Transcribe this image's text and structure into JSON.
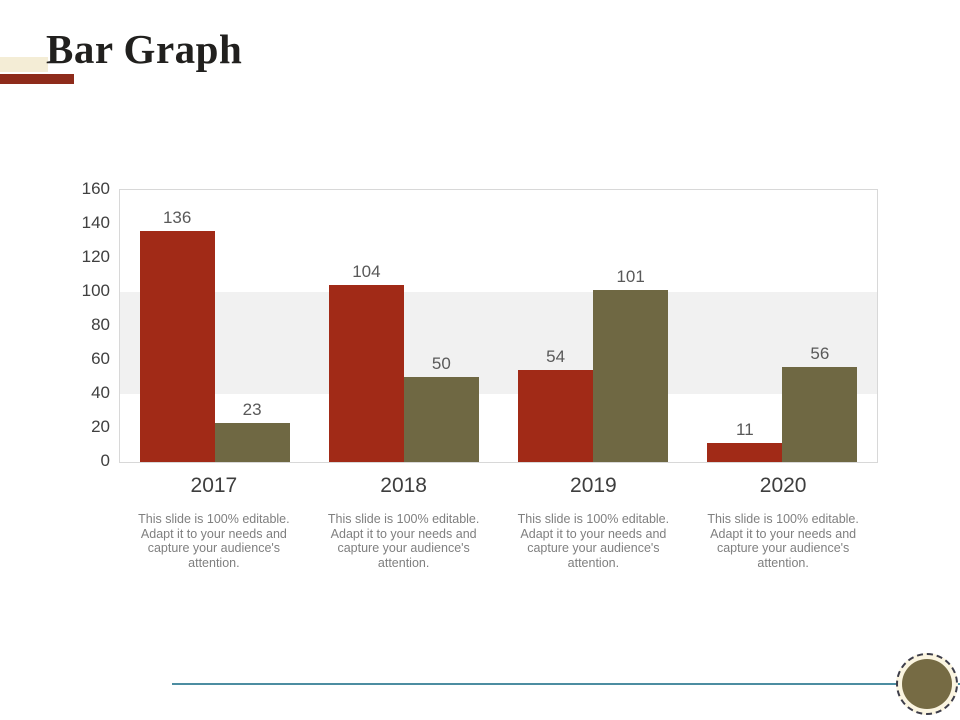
{
  "slide": {
    "title": "Bar Graph"
  },
  "chart_data": {
    "type": "bar",
    "title": "",
    "categories": [
      "2017",
      "2018",
      "2019",
      "2020"
    ],
    "series": [
      {
        "name": "series-1",
        "color": "#a12a17",
        "values": [
          136,
          104,
          54,
          11
        ]
      },
      {
        "name": "series-2",
        "color": "#6f6843",
        "values": [
          23,
          50,
          101,
          56
        ]
      }
    ],
    "ylim": [
      0,
      160
    ],
    "yticks": [
      0,
      20,
      40,
      60,
      80,
      100,
      120,
      140,
      160
    ],
    "grid": false,
    "legend_position": "none",
    "value_labels": true,
    "highlight_band": {
      "from": 40,
      "to": 100,
      "color": "#f1f1f1"
    }
  },
  "category_captions": [
    "This slide is 100% editable. Adapt it to your needs and capture your audience's attention.",
    "This slide is 100% editable. Adapt it to your needs and capture your audience's attention.",
    "This slide is 100% editable. Adapt it to your needs and capture your audience's attention.",
    "This slide is 100% editable. Adapt it to your needs and capture your audience's attention."
  ],
  "decor": {
    "title_underline_cream": "#f4edd6",
    "title_underline_red": "#8e2b1b",
    "footer_line_color": "#4c8da1",
    "footer_circle_fill": "#766b44",
    "footer_circle_ring_bg": "#fbf5e1"
  }
}
